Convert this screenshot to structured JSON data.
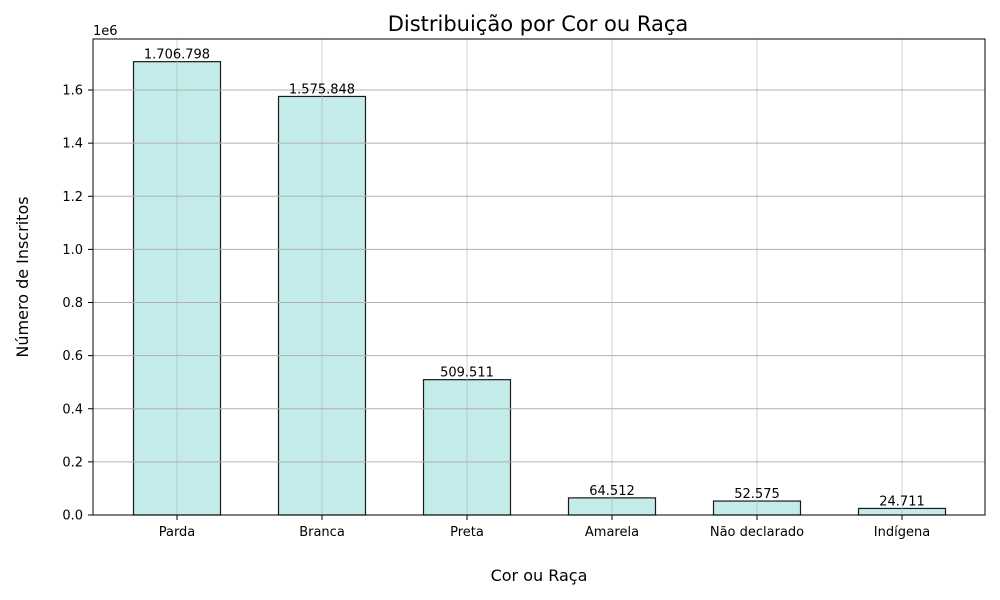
{
  "chart_data": {
    "type": "bar",
    "title": "Distribuição por Cor ou Raça",
    "xlabel": "Cor ou Raça",
    "ylabel": "Número de Inscritos",
    "y_offset_text": "1e6",
    "categories": [
      "Parda",
      "Branca",
      "Preta",
      "Amarela",
      "Não declarado",
      "Indígena"
    ],
    "values": [
      1706798,
      1575848,
      509511,
      64512,
      52575,
      24711
    ],
    "value_labels": [
      "1.706.798",
      "1.575.848",
      "509.511",
      "64.512",
      "52.575",
      "24.711"
    ],
    "ylim": [
      0,
      1792138
    ],
    "yticks": [
      0,
      200000,
      400000,
      600000,
      800000,
      1000000,
      1200000,
      1400000,
      1600000
    ],
    "ytick_labels": [
      "0.0",
      "0.2",
      "0.4",
      "0.6",
      "0.8",
      "1.0",
      "1.2",
      "1.4",
      "1.6"
    ],
    "grid": true,
    "bar_color": "#afe4e1",
    "edge_color": "#1a1a1a"
  }
}
